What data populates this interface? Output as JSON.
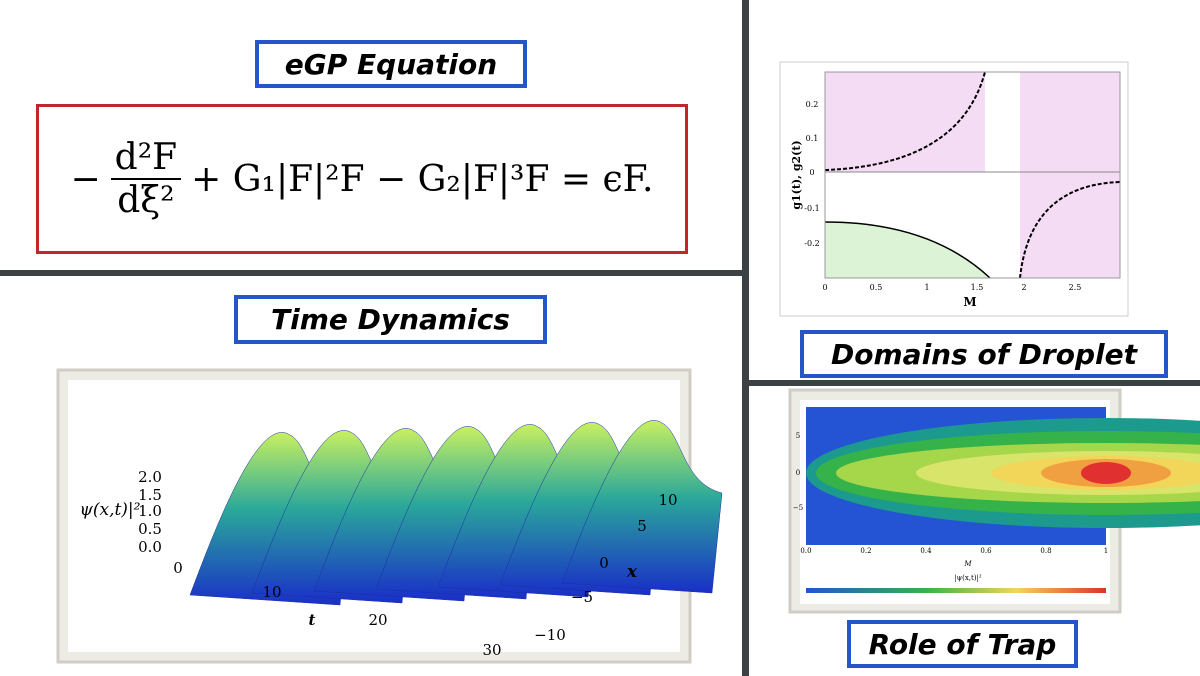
{
  "headings": {
    "equation": "eGP Equation",
    "time": "Time Dynamics",
    "domains": "Domains of Droplet",
    "trap": "Role of Trap"
  },
  "equation": {
    "sign": "−",
    "numerator": "d²F",
    "denominator": "dξ²",
    "rest": "+ G₁|F|²F − G₂|F|³F = ϵF."
  },
  "domains_plot": {
    "y_label": "g1(t), g2(t)",
    "x_label": "M",
    "yticks": [
      "0.2",
      "0.1",
      "0",
      "-0.1",
      "-0.2"
    ],
    "xticks": [
      "0",
      "0.5",
      "1",
      "1.5",
      "2",
      "2.5"
    ]
  },
  "time_plot": {
    "z_label": "ψ(x,t)|²",
    "zticks": [
      "2.0",
      "1.5",
      "1.0",
      "0.5",
      "0.0"
    ],
    "t_label": "t",
    "tticks": [
      "0",
      "10",
      "20",
      "30"
    ],
    "x_label": "x",
    "xticks": [
      "10",
      "5",
      "0",
      "−5",
      "−10"
    ]
  },
  "trap_plot": {
    "yticks": [
      "5",
      "0",
      "−5"
    ],
    "xticks": [
      "0.0",
      "0.2",
      "0.4",
      "0.6",
      "0.8",
      "1"
    ],
    "x_label": "M",
    "colorbar_label": "|ψ(x,t)|²"
  }
}
